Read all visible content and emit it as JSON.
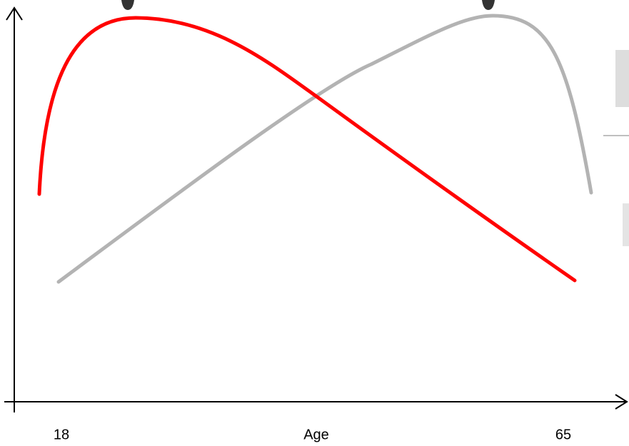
{
  "axis": {
    "start_label": "18",
    "title": "Age",
    "end_label": "65"
  }
}
